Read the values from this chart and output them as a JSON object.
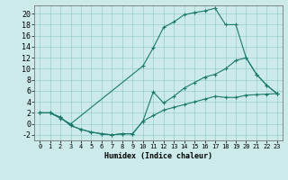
{
  "xlabel": "Humidex (Indice chaleur)",
  "bg_color": "#cceaea",
  "grid_color": "#99cccc",
  "line_color": "#1a7a6a",
  "xlim": [
    -0.5,
    23.5
  ],
  "ylim": [
    -3.0,
    21.5
  ],
  "xticks": [
    0,
    1,
    2,
    3,
    4,
    5,
    6,
    7,
    8,
    9,
    10,
    11,
    12,
    13,
    14,
    15,
    16,
    17,
    18,
    19,
    20,
    21,
    22,
    23
  ],
  "yticks": [
    -2,
    0,
    2,
    4,
    6,
    8,
    10,
    12,
    14,
    16,
    18,
    20
  ],
  "curve1_x": [
    0,
    1,
    2,
    3,
    10,
    11,
    12,
    13,
    14,
    15,
    16,
    17,
    18,
    19,
    20,
    21,
    22,
    23
  ],
  "curve1_y": [
    2,
    2,
    1,
    0,
    10.5,
    13.8,
    17.5,
    18.5,
    19.8,
    20.2,
    20.5,
    21,
    18,
    18,
    12,
    9,
    7,
    5.5
  ],
  "curve2_x": [
    0,
    1,
    2,
    3,
    4,
    5,
    6,
    7,
    8,
    9,
    10,
    11,
    12,
    13,
    14,
    15,
    16,
    17,
    18,
    19,
    20,
    21,
    22,
    23
  ],
  "curve2_y": [
    2,
    2,
    1.2,
    -0.3,
    -1,
    -1.5,
    -1.8,
    -2,
    -1.8,
    -1.8,
    0.5,
    5.8,
    3.8,
    5,
    6.5,
    7.5,
    8.5,
    9,
    10,
    11.5,
    12,
    9,
    7,
    5.5
  ],
  "curve3_x": [
    0,
    1,
    2,
    3,
    4,
    5,
    6,
    7,
    8,
    9,
    10,
    11,
    12,
    13,
    14,
    15,
    16,
    17,
    18,
    19,
    20,
    21,
    22,
    23
  ],
  "curve3_y": [
    2,
    2,
    1.2,
    -0.3,
    -1,
    -1.5,
    -1.8,
    -2,
    -1.8,
    -1.8,
    0.5,
    1.5,
    2.5,
    3.0,
    3.5,
    4.0,
    4.5,
    5.0,
    4.8,
    4.8,
    5.2,
    5.3,
    5.4,
    5.5
  ],
  "xlabel_fontsize": 6,
  "tick_fontsize": 5
}
